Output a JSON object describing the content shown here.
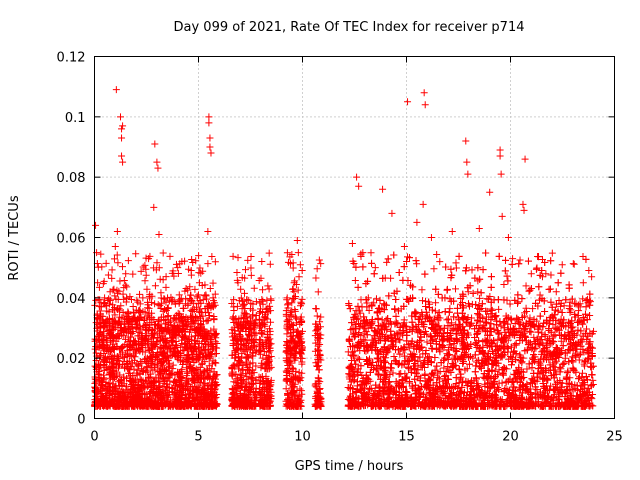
{
  "chart_data": {
    "type": "scatter",
    "title": "Day 099 of 2021, Rate Of TEC Index for receiver p714",
    "xlabel": "GPS time / hours",
    "ylabel": "ROTI / TECUs",
    "xlim": [
      0,
      25
    ],
    "ylim": [
      0,
      0.12
    ],
    "x_ticks": [
      0,
      5,
      10,
      15,
      20,
      25
    ],
    "x_tick_labels": [
      "0",
      "5",
      "10",
      "15",
      "20",
      "25"
    ],
    "y_ticks": [
      0,
      0.02,
      0.04,
      0.06,
      0.08,
      0.1,
      0.12
    ],
    "y_tick_labels": [
      "0",
      "0.02",
      "0.04",
      "0.06",
      "0.08",
      "0.1",
      "0.12"
    ],
    "grid": true,
    "marker": "+",
    "color": "#ff0000",
    "observation_windows_hours": [
      [
        0.0,
        5.9
      ],
      [
        6.6,
        7.8
      ],
      [
        7.9,
        8.5
      ],
      [
        9.2,
        10.0
      ],
      [
        10.6,
        10.9
      ],
      [
        12.2,
        24.0
      ]
    ],
    "series": [
      {
        "name": "ROTI",
        "x": [
          0.05,
          0.1,
          0.15,
          0.3,
          0.5,
          0.75,
          1.0,
          1.05,
          1.1,
          1.25,
          1.3,
          1.3,
          1.3,
          1.35,
          1.35,
          1.5,
          1.8,
          2.2,
          2.6,
          2.85,
          2.9,
          3.0,
          3.05,
          3.1,
          3.3,
          3.6,
          4.0,
          4.2,
          4.5,
          5.0,
          5.45,
          5.5,
          5.5,
          5.55,
          5.55,
          5.6,
          5.7,
          6.9,
          7.2,
          7.5,
          8.3,
          9.3,
          9.6,
          9.75,
          9.8,
          10.75,
          12.4,
          12.6,
          12.7,
          12.9,
          13.5,
          13.85,
          14.3,
          14.9,
          15.05,
          15.5,
          15.8,
          15.85,
          15.9,
          16.2,
          16.6,
          17.2,
          17.85,
          17.9,
          17.95,
          18.5,
          19.0,
          19.5,
          19.5,
          19.55,
          19.6,
          19.9,
          20.1,
          20.6,
          20.65,
          20.7,
          21.0,
          21.7,
          22.2,
          22.9,
          23.35,
          23.5,
          23.9
        ],
        "y": [
          0.064,
          0.055,
          0.045,
          0.03,
          0.038,
          0.042,
          0.057,
          0.109,
          0.062,
          0.1,
          0.096,
          0.093,
          0.087,
          0.085,
          0.097,
          0.048,
          0.033,
          0.038,
          0.053,
          0.07,
          0.091,
          0.085,
          0.083,
          0.061,
          0.046,
          0.039,
          0.05,
          0.052,
          0.038,
          0.041,
          0.062,
          0.1,
          0.098,
          0.093,
          0.09,
          0.088,
          0.04,
          0.045,
          0.035,
          0.03,
          0.033,
          0.025,
          0.045,
          0.059,
          0.055,
          0.024,
          0.058,
          0.08,
          0.077,
          0.055,
          0.05,
          0.076,
          0.068,
          0.057,
          0.105,
          0.065,
          0.071,
          0.108,
          0.104,
          0.06,
          0.052,
          0.062,
          0.092,
          0.085,
          0.081,
          0.063,
          0.075,
          0.089,
          0.087,
          0.081,
          0.067,
          0.06,
          0.053,
          0.071,
          0.069,
          0.086,
          0.048,
          0.048,
          0.042,
          0.036,
          0.037,
          0.045,
          0.047
        ]
      }
    ]
  }
}
